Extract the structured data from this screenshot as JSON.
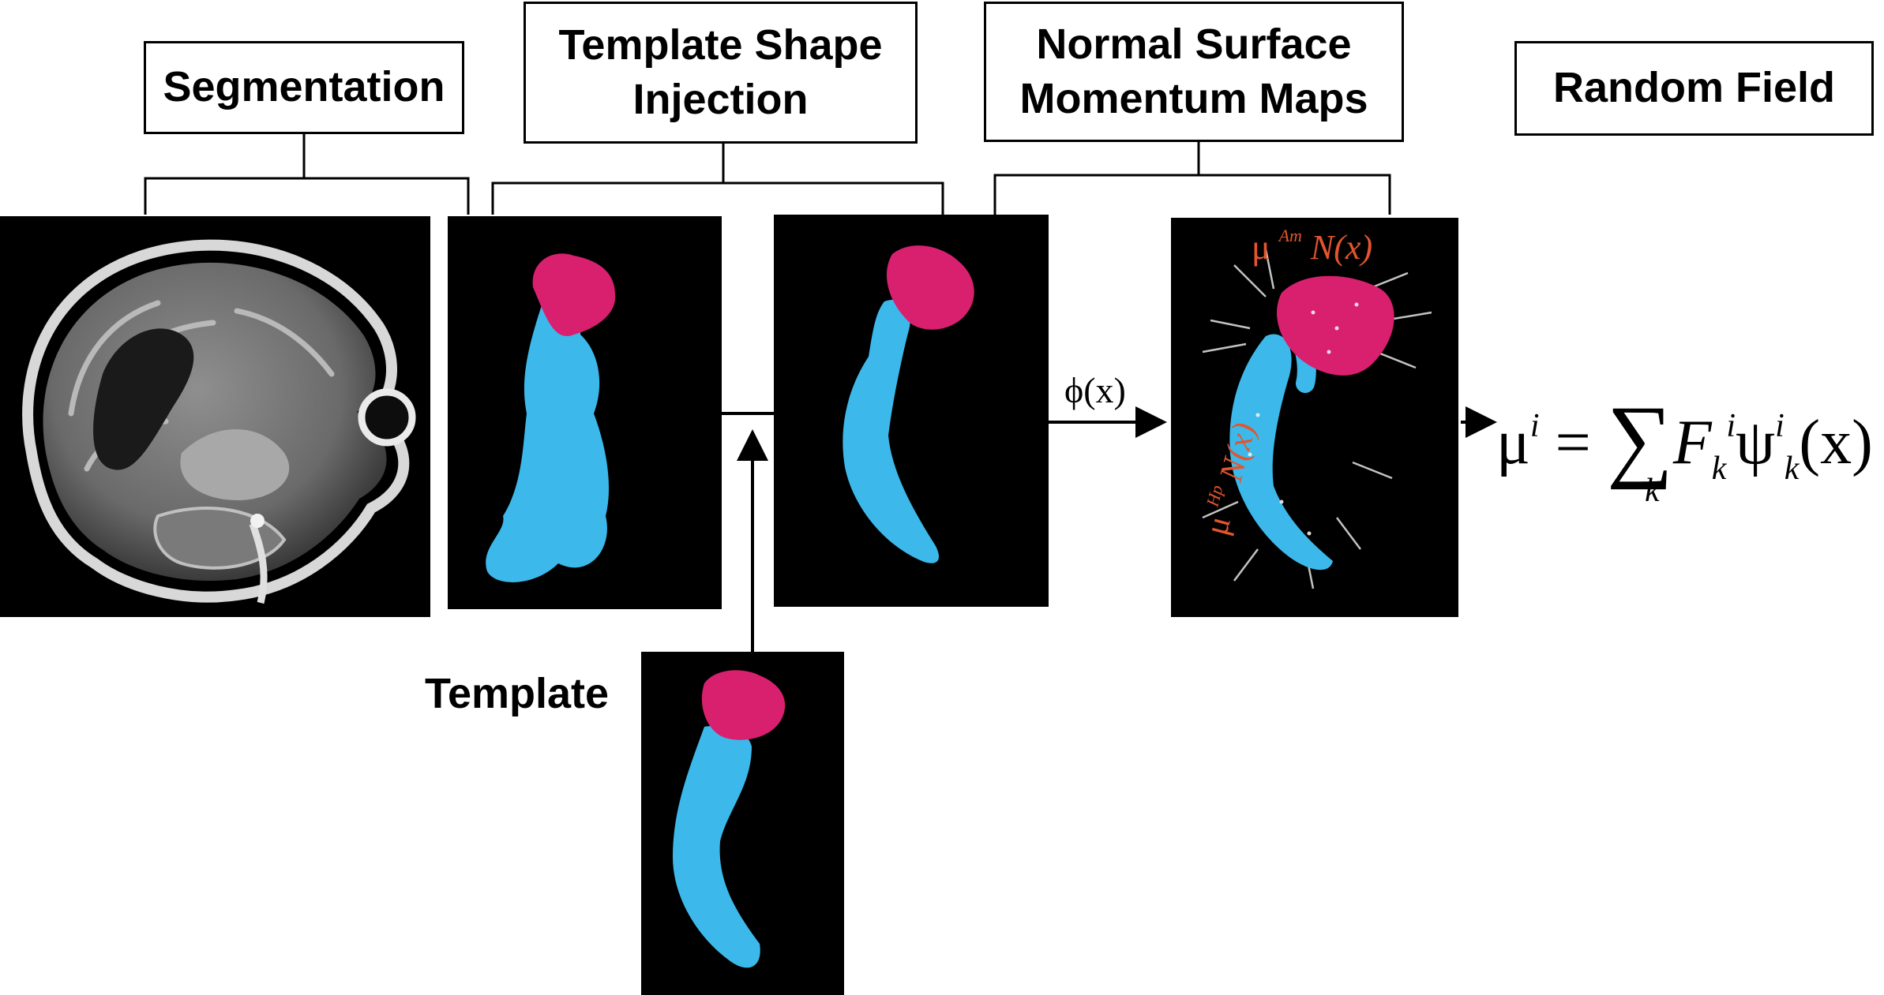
{
  "labels": {
    "segmentation": "Segmentation",
    "template_shape_injection": "Template Shape\nInjection",
    "normal_surface_momentum_maps": "Normal Surface\nMomentum Maps",
    "random_field": "Random  Field",
    "template": "Template"
  },
  "math": {
    "phi": "ϕ(x)",
    "eq_mu": "μ",
    "eq_sup_i": "i",
    "eq_equals": " = ",
    "eq_sum": "∑",
    "eq_sum_index": "k",
    "eq_F": "F",
    "eq_F_sup": "i",
    "eq_F_sub": "k",
    "eq_psi": "ψ",
    "eq_psi_sup": "i",
    "eq_psi_sub": "k",
    "eq_arg": "(x)",
    "am_mu": "μ",
    "am_sup": "Am",
    "am_N": "N(x)",
    "hp_mu": "μ",
    "hp_sup": "Hp",
    "hp_N": "N(x)"
  },
  "colors": {
    "hippocampus": "#3cb9ea",
    "amygdala": "#d8206e",
    "panel_background": "#000000",
    "annotation_red": "#e2552e"
  }
}
